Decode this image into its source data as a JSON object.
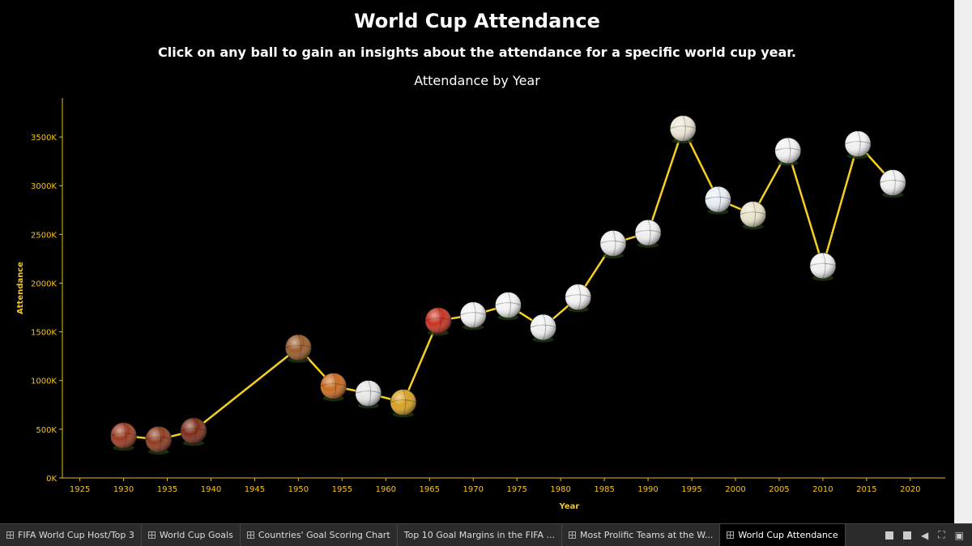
{
  "header": {
    "title": "World Cup Attendance",
    "subtitle": "Click on any ball to gain an insights about the attendance for a specific world cup year.",
    "chart_title": "Attendance by Year"
  },
  "chart_data": {
    "type": "line",
    "title": "Attendance by Year",
    "xlabel": "Year",
    "ylabel": "Attendance",
    "xlim": [
      1923,
      2024
    ],
    "ylim": [
      0,
      3900000
    ],
    "x_ticks": [
      1925,
      1930,
      1935,
      1940,
      1945,
      1950,
      1955,
      1960,
      1965,
      1970,
      1975,
      1980,
      1985,
      1990,
      1995,
      2000,
      2005,
      2010,
      2015,
      2020
    ],
    "y_ticks": [
      {
        "value": 0,
        "label": "0K"
      },
      {
        "value": 500000,
        "label": "500K"
      },
      {
        "value": 1000000,
        "label": "1000K"
      },
      {
        "value": 1500000,
        "label": "1500K"
      },
      {
        "value": 2000000,
        "label": "2000K"
      },
      {
        "value": 2500000,
        "label": "2500K"
      },
      {
        "value": 3000000,
        "label": "3000K"
      },
      {
        "value": 3500000,
        "label": "3500K"
      }
    ],
    "grid": false,
    "series": [
      {
        "x": [
          1930,
          1934,
          1938,
          1950,
          1954,
          1958,
          1962,
          1966,
          1970,
          1974,
          1978,
          1982,
          1986,
          1990,
          1994,
          1998,
          2002,
          2006,
          2010,
          2014,
          2018
        ],
        "y": [
          434000,
          395000,
          483000,
          1338000,
          943000,
          868000,
          776000,
          1615000,
          1673000,
          1774000,
          1546000,
          1856000,
          2408000,
          2517000,
          3587000,
          2859000,
          2705000,
          3359000,
          2178000,
          3429000,
          3031000
        ]
      }
    ],
    "colors": {
      "line": "#f5d020",
      "axis": "#e8b820",
      "tick_text": "#f5c518",
      "ball_colors": [
        "#9a3a20",
        "#8e3a1e",
        "#7e2c18",
        "#9a5a28",
        "#c96a1e",
        "#e6e6e6",
        "#d8a020",
        "#c8301e",
        "#f2f2f2",
        "#f2f2f2",
        "#eeeeee",
        "#f2f2f2",
        "#eeeeee",
        "#eeeeee",
        "#ece6d6",
        "#e8ecf4",
        "#e8e2c8",
        "#f0f0f0",
        "#f0f0f0",
        "#f0f0f0",
        "#f0f0f0"
      ]
    }
  },
  "tabs": [
    {
      "label": "FIFA World Cup Host/Top 3"
    },
    {
      "label": "World Cup Goals"
    },
    {
      "label": "Countries' Goal Scoring Chart"
    },
    {
      "label": "Top 10 Goal Margins in the FIFA ..."
    },
    {
      "label": "Most Prolific Teams at the W..."
    },
    {
      "label": "World Cup Attendance"
    }
  ],
  "toolbar": {
    "icons": [
      "grid-view-icon",
      "square-view-icon",
      "arrow-left-icon",
      "fullscreen-icon",
      "present-icon"
    ]
  }
}
